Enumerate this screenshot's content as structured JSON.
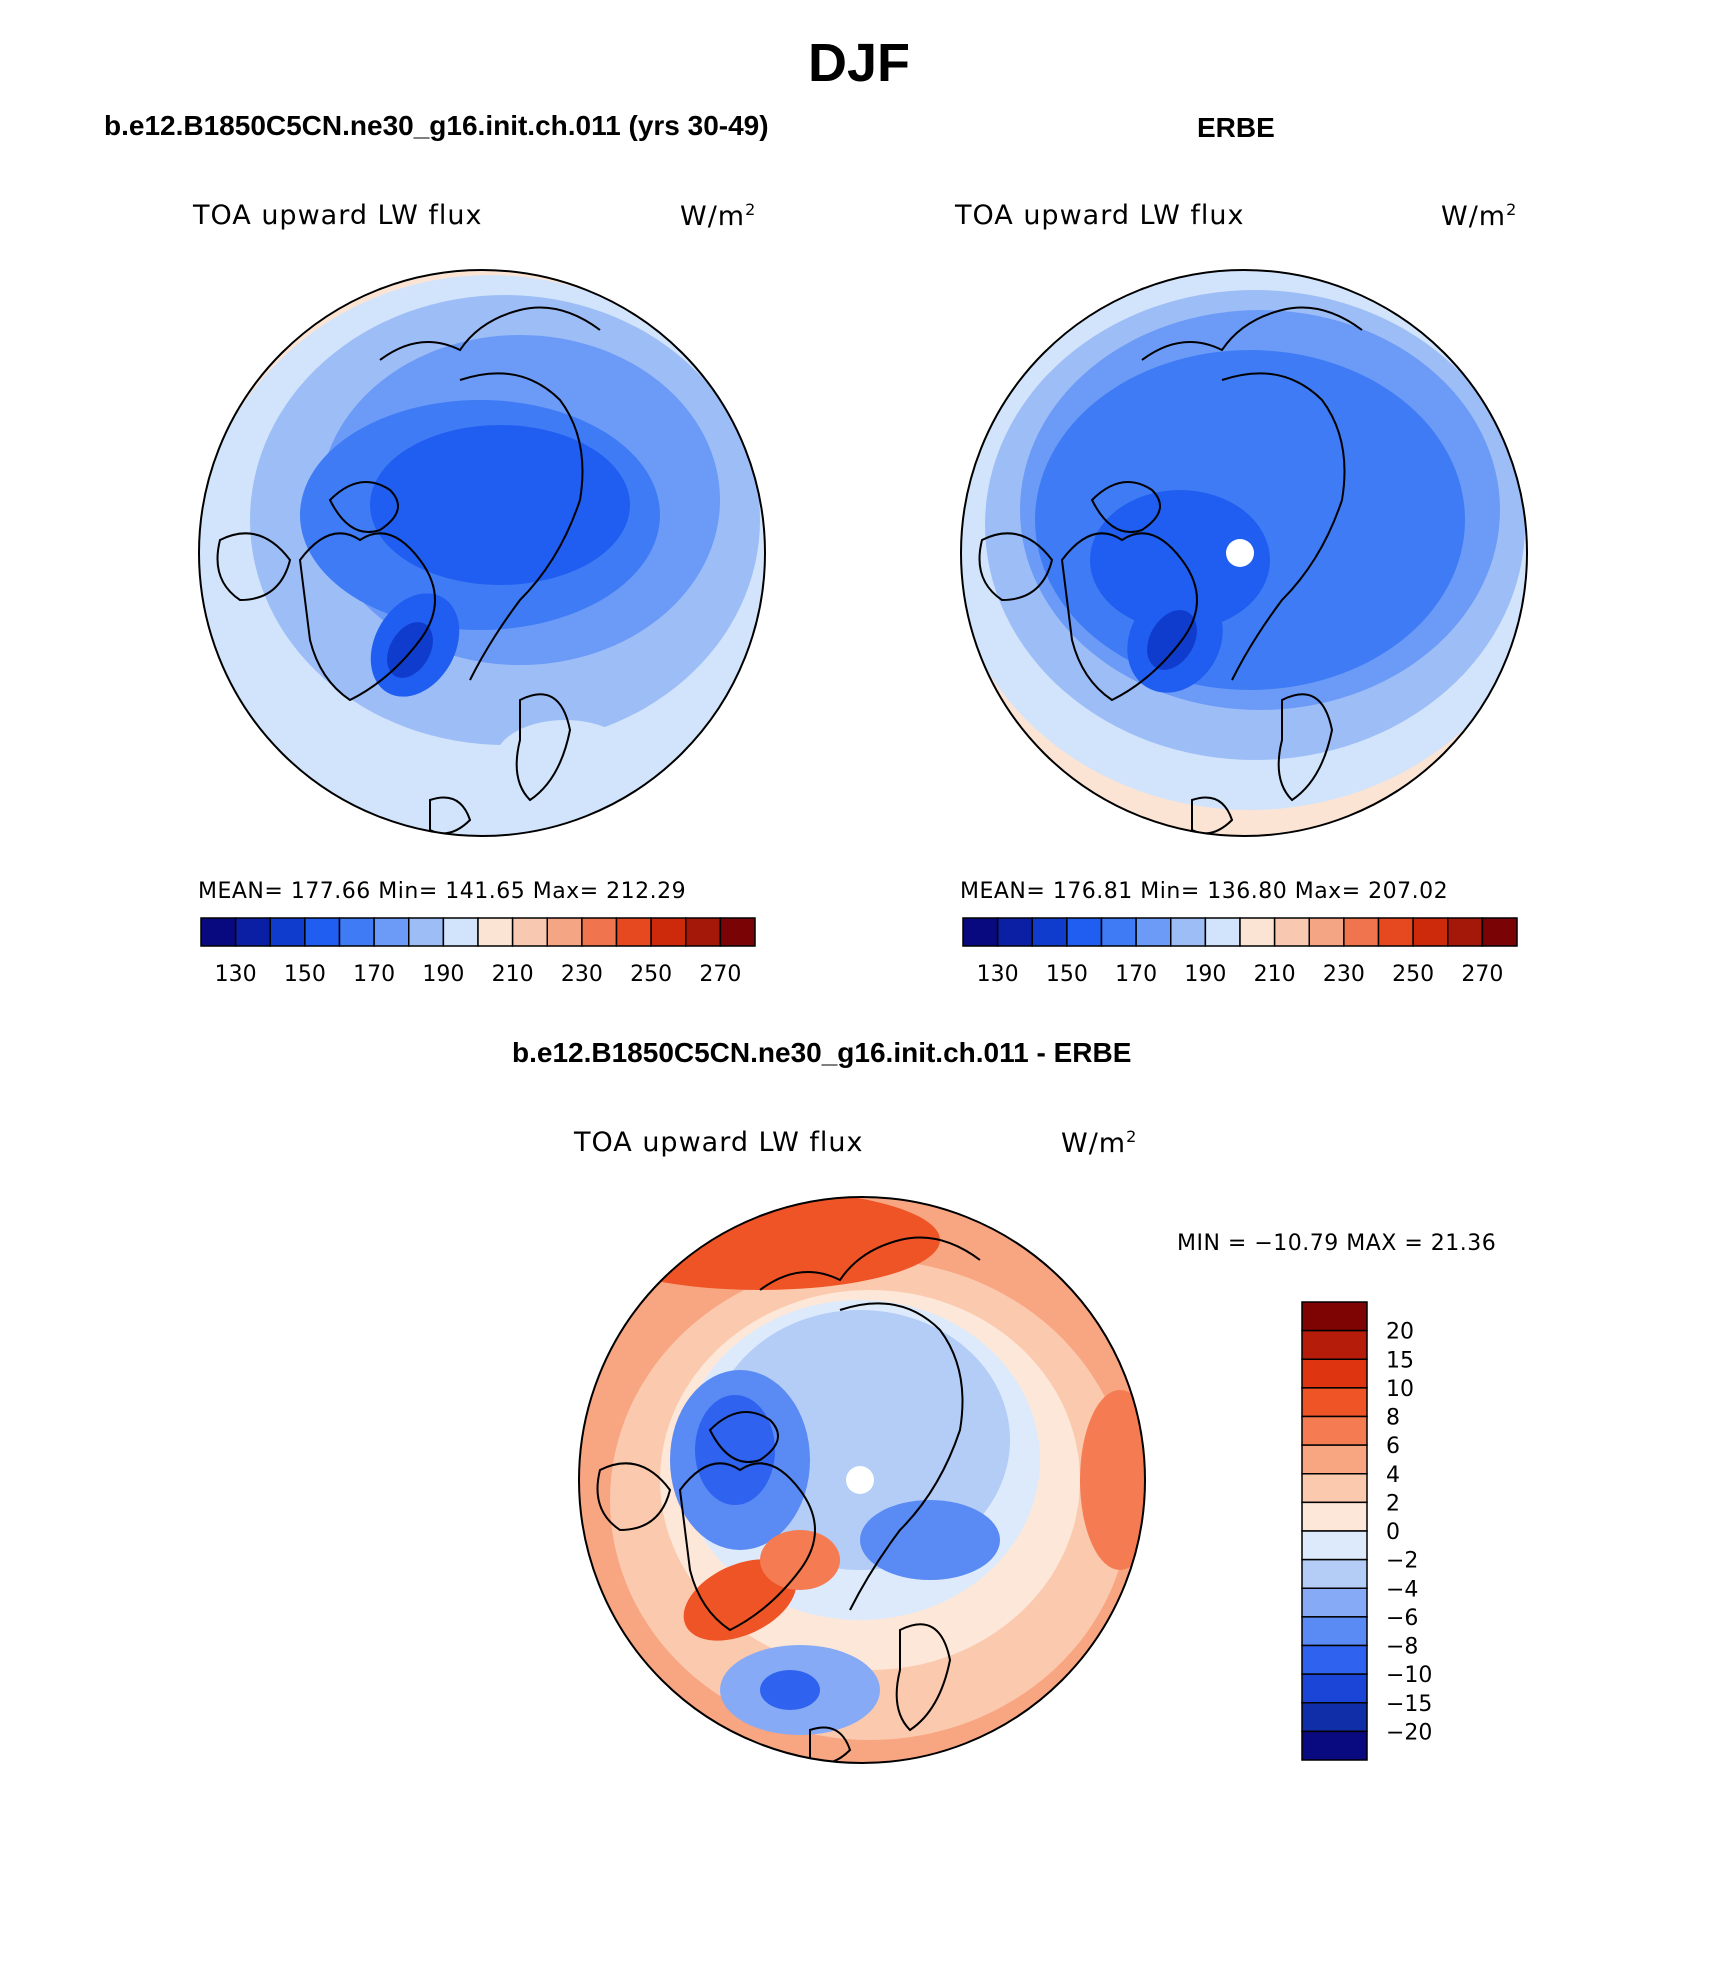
{
  "page": {
    "title": "DJF"
  },
  "colors": {
    "abs_scale": [
      "#08087f",
      "#0a1fa3",
      "#0f3ccc",
      "#1f5ef0",
      "#3f7bf5",
      "#6b9bf7",
      "#9dbdf7",
      "#d2e4fb",
      "#fbe4d4",
      "#f8c9b0",
      "#f4a584",
      "#f0744e",
      "#e6481f",
      "#cc2a0b",
      "#a31808",
      "#7a0306"
    ],
    "diff_scale": [
      "#0a0a80",
      "#102ea8",
      "#1b45d6",
      "#2f63ef",
      "#5a8af3",
      "#86aaf5",
      "#b4cdf7",
      "#dceafc",
      "#fde7d8",
      "#fbcaae",
      "#f8a582",
      "#f47b52",
      "#ef5426",
      "#de3410",
      "#b51d0a",
      "#7e0404"
    ]
  },
  "panels": [
    {
      "title": "b.e12.B1850C5CN.ne30_g16.init.ch.011 (yrs 30-49)",
      "var_label": "TOA upward LW flux",
      "units": "W/m",
      "units_sup": "2",
      "stats": "MEAN= 177.66   Min= 141.65   Max= 212.29"
    },
    {
      "title": "ERBE",
      "var_label": "TOA upward LW flux",
      "units": "W/m",
      "units_sup": "2",
      "stats": "MEAN= 176.81   Min= 136.80   Max= 207.02"
    },
    {
      "title": "b.e12.B1850C5CN.ne30_g16.init.ch.011 - ERBE",
      "var_label": "TOA upward LW flux",
      "units": "W/m",
      "units_sup": "2",
      "stats": "MIN = −10.79 MAX =   21.36"
    }
  ],
  "chart_data": [
    {
      "type": "heatmap",
      "projection": "north polar stereographic",
      "title": "b.e12.B1850C5CN.ne30_g16.init.ch.011 (yrs 30-49)",
      "variable": "TOA upward LW flux",
      "units": "W/m2",
      "mean": 177.66,
      "min": 141.65,
      "max": 212.29,
      "colorbar_levels": [
        130,
        140,
        150,
        160,
        170,
        180,
        190,
        200,
        210,
        220,
        230,
        240,
        250,
        260,
        270
      ],
      "colorbar_tick_labels": [
        "130",
        "150",
        "170",
        "190",
        "210",
        "230",
        "250",
        "270"
      ]
    },
    {
      "type": "heatmap",
      "projection": "north polar stereographic",
      "title": "ERBE",
      "variable": "TOA upward LW flux",
      "units": "W/m2",
      "mean": 176.81,
      "min": 136.8,
      "max": 207.02,
      "colorbar_levels": [
        130,
        140,
        150,
        160,
        170,
        180,
        190,
        200,
        210,
        220,
        230,
        240,
        250,
        260,
        270
      ],
      "colorbar_tick_labels": [
        "130",
        "150",
        "170",
        "190",
        "210",
        "230",
        "250",
        "270"
      ]
    },
    {
      "type": "heatmap",
      "projection": "north polar stereographic",
      "title": "b.e12.B1850C5CN.ne30_g16.init.ch.011 - ERBE",
      "variable": "TOA upward LW flux",
      "units": "W/m2",
      "min": -10.79,
      "max": 21.36,
      "colorbar_levels": [
        20,
        15,
        10,
        8,
        6,
        4,
        2,
        0,
        -2,
        -4,
        -6,
        -8,
        -10,
        -15,
        -20
      ],
      "colorbar_tick_labels": [
        "20",
        "15",
        "10",
        "8",
        "6",
        "4",
        "2",
        "0",
        "−2",
        "−4",
        "−6",
        "−8",
        "−10",
        "−15",
        "−20"
      ]
    }
  ]
}
